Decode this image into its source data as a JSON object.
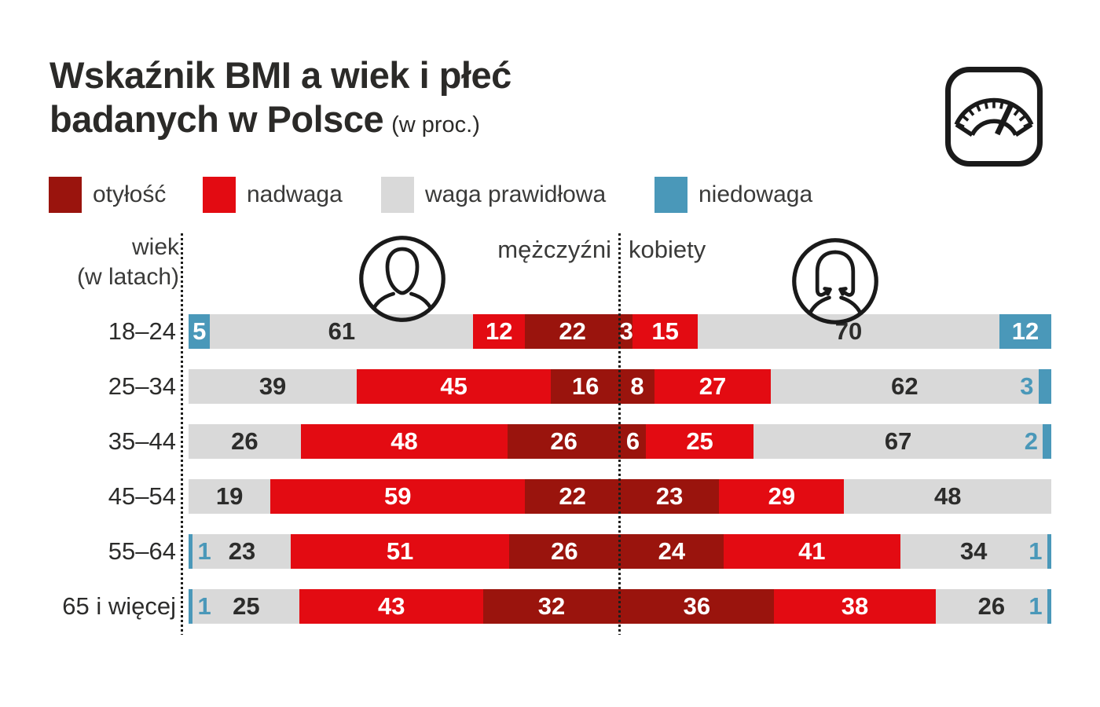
{
  "title": {
    "line1": "Wskaźnik BMI a wiek i płeć",
    "line2": "badanych w Polsce",
    "unit_note": "(w proc.)"
  },
  "colors": {
    "otylosc": "#9a140d",
    "nadwaga": "#e30b12",
    "waga_prawidlowa": "#d9d9d9",
    "niedowaga": "#4a98b9",
    "label_on_color": "#ffffff",
    "label_on_gray": "#2c2c2b",
    "text_dark": "#2b2a28",
    "icon_stroke": "#1a1a1a"
  },
  "legend": [
    {
      "key": "otylosc",
      "label": "otyłość"
    },
    {
      "key": "nadwaga",
      "label": "nadwaga"
    },
    {
      "key": "waga_prawidlowa",
      "label": "waga prawidłowa"
    },
    {
      "key": "niedowaga",
      "label": "niedowaga"
    }
  ],
  "axis": {
    "row_header_line1": "wiek",
    "row_header_line2": "(w latach)",
    "group_left": "mężczyźni",
    "group_right": "kobiety"
  },
  "icons": {
    "top_right": "bathroom-scale-icon",
    "left_group": "male-portrait-icon",
    "right_group": "female-portrait-icon"
  },
  "chart_data": {
    "type": "bar",
    "variant": "diverging stacked bars, men on left half / women on right half, values in percent",
    "title": "Wskaźnik BMI a wiek i płeć badanych w Polsce",
    "unit": "proc.",
    "categories": [
      "18–24",
      "25–34",
      "35–44",
      "45–54",
      "55–64",
      "65 i więcej"
    ],
    "groups": [
      "mężczyźni",
      "kobiety"
    ],
    "legend_order": [
      "otyłość",
      "nadwaga",
      "waga prawidłowa",
      "niedowaga"
    ],
    "segment_order_men": [
      "niedowaga",
      "waga_prawidlowa",
      "nadwaga",
      "otylosc"
    ],
    "segment_order_women": [
      "otylosc",
      "nadwaga",
      "waga_prawidlowa",
      "niedowaga"
    ],
    "men": [
      {
        "niedowaga": 5,
        "waga_prawidlowa": 61,
        "nadwaga": 12,
        "otylosc": 22
      },
      {
        "niedowaga": 0,
        "waga_prawidlowa": 39,
        "nadwaga": 45,
        "otylosc": 16
      },
      {
        "niedowaga": 0,
        "waga_prawidlowa": 26,
        "nadwaga": 48,
        "otylosc": 26
      },
      {
        "niedowaga": 0,
        "waga_prawidlowa": 19,
        "nadwaga": 59,
        "otylosc": 22
      },
      {
        "niedowaga": 1,
        "waga_prawidlowa": 23,
        "nadwaga": 51,
        "otylosc": 26
      },
      {
        "niedowaga": 1,
        "waga_prawidlowa": 25,
        "nadwaga": 43,
        "otylosc": 32
      }
    ],
    "women": [
      {
        "otylosc": 3,
        "nadwaga": 15,
        "waga_prawidlowa": 70,
        "niedowaga": 12
      },
      {
        "otylosc": 8,
        "nadwaga": 27,
        "waga_prawidlowa": 62,
        "niedowaga": 3
      },
      {
        "otylosc": 6,
        "nadwaga": 25,
        "waga_prawidlowa": 67,
        "niedowaga": 2
      },
      {
        "otylosc": 23,
        "nadwaga": 29,
        "waga_prawidlowa": 48,
        "niedowaga": 0
      },
      {
        "otylosc": 24,
        "nadwaga": 41,
        "waga_prawidlowa": 34,
        "niedowaga": 1
      },
      {
        "otylosc": 36,
        "nadwaga": 38,
        "waga_prawidlowa": 26,
        "niedowaga": 1
      }
    ]
  }
}
